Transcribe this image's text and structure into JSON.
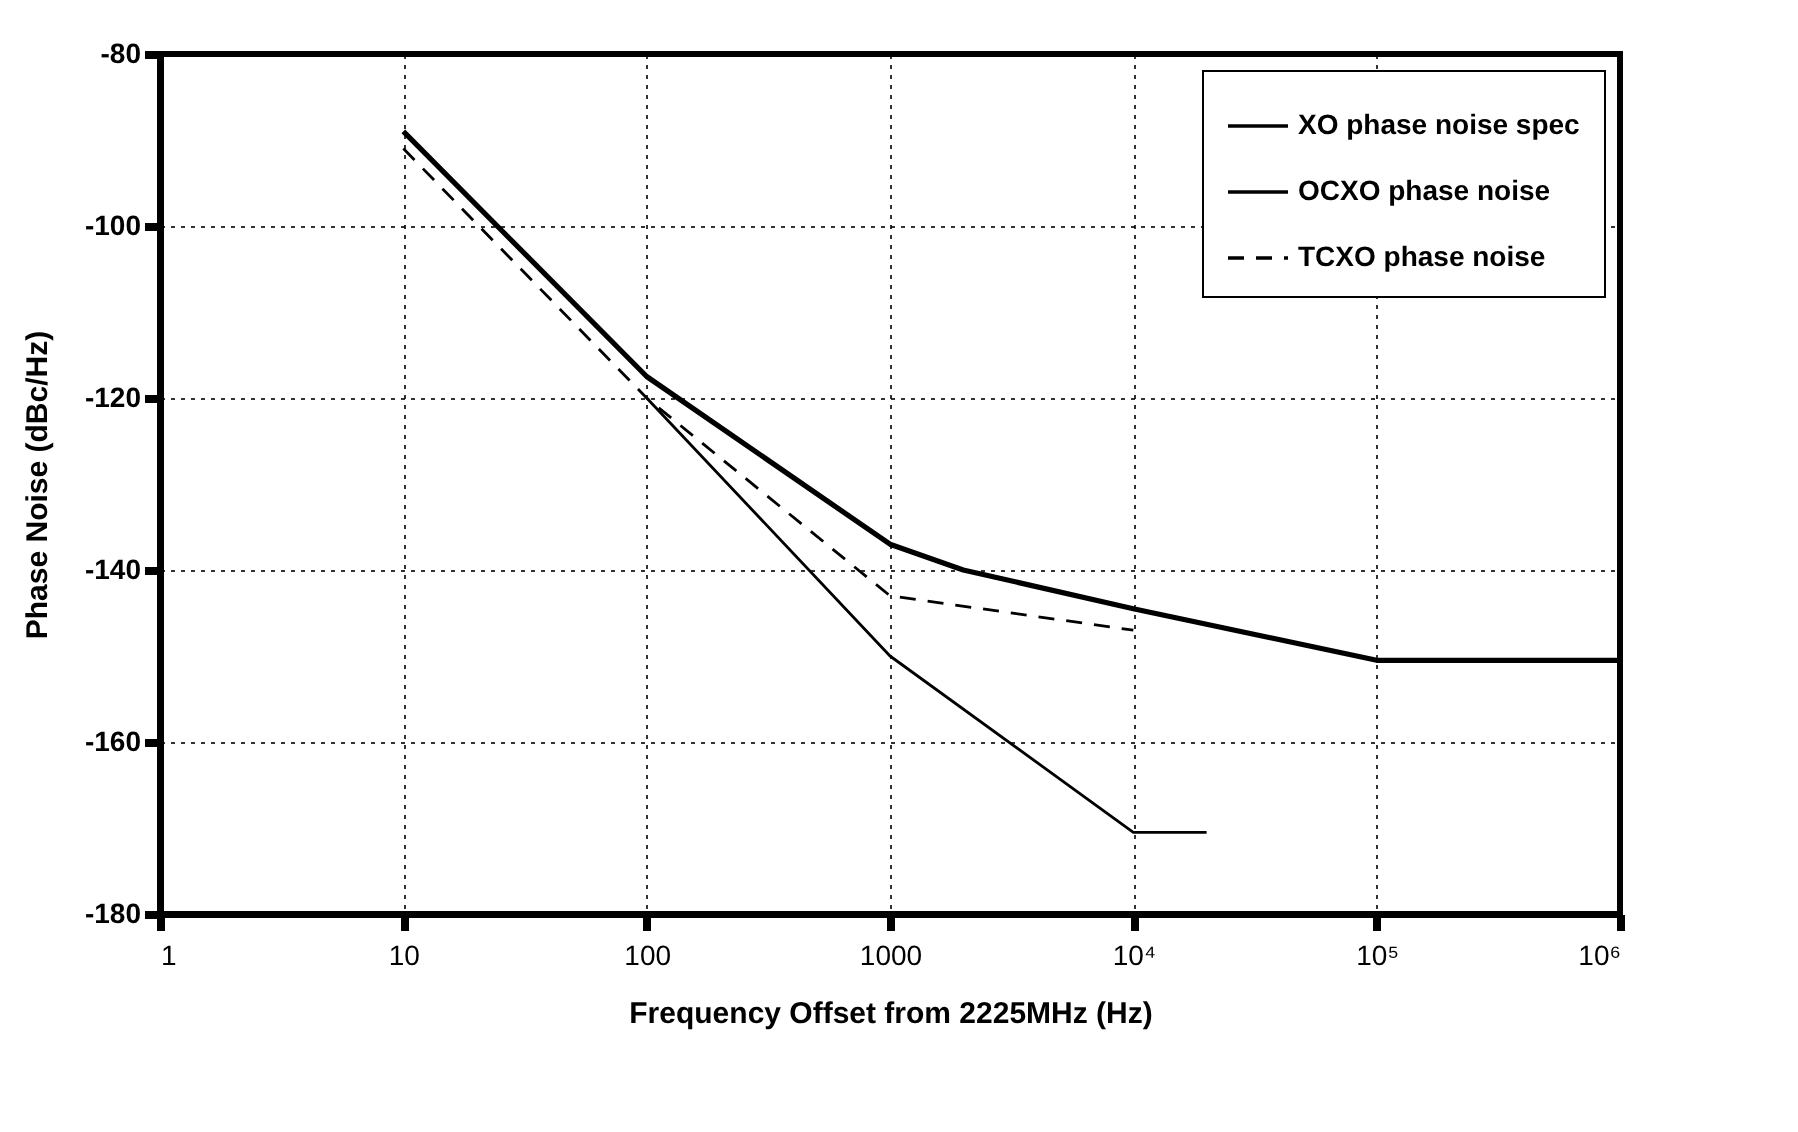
{
  "chart_data": {
    "type": "line",
    "xlabel": "Frequency Offset from 2225MHz (Hz)",
    "ylabel": "Phase Noise (dBc/Hz)",
    "log": "x",
    "grid": true,
    "legend": "top right",
    "marker": "none",
    "xlim": [
      1,
      1000000
    ],
    "xticks": [
      1,
      10,
      100,
      1000,
      {
        "value": 10000,
        "label": "10⁴"
      },
      {
        "value": 100000,
        "label": "10⁵"
      },
      {
        "value": 1000000,
        "label": "10⁶"
      }
    ],
    "ylim": [
      -180,
      -80
    ],
    "yticks": [
      -180,
      -160,
      -140,
      -120,
      -100,
      -80
    ],
    "series": [
      {
        "name": "XO phase noise spec",
        "color": "#000000",
        "line_style": "solid",
        "x": [
          10,
          100,
          1000,
          2000,
          10000,
          100000,
          1000000
        ],
        "values": [
          -89,
          -117.5,
          -137,
          -140,
          -144.5,
          -150.5,
          -150.5
        ]
      },
      {
        "name": "OCXO phase noise",
        "color": "#000000",
        "line_style": "solid",
        "x": [
          100,
          1000,
          10000,
          20000
        ],
        "values": [
          -120,
          -150,
          -170.5,
          -170.5
        ]
      },
      {
        "name": "TCXO phase noise",
        "color": "#000000",
        "line_style": "dashed",
        "x": [
          10,
          100,
          1000,
          10000
        ],
        "values": [
          -91,
          -120,
          -143,
          -147
        ]
      }
    ]
  }
}
